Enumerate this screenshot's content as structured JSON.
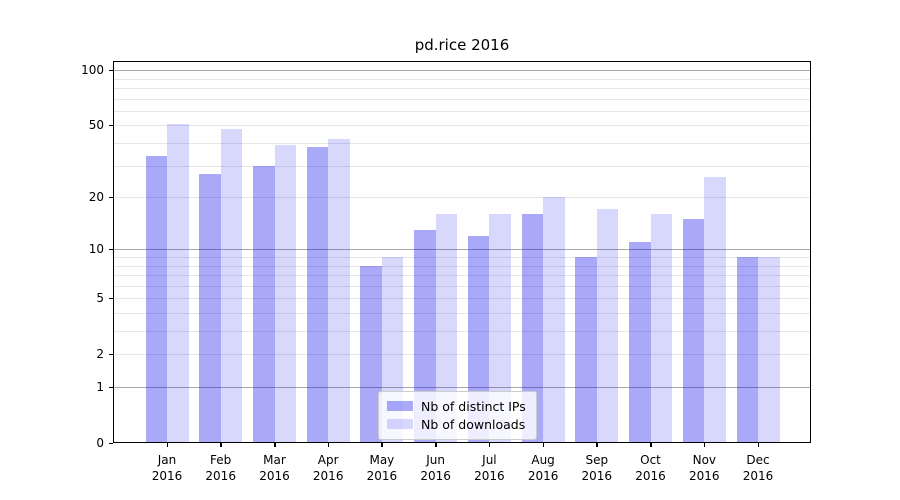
{
  "chart_data": {
    "type": "bar",
    "title": "pd.rice 2016",
    "categories": [
      "Jan 2016",
      "Feb 2016",
      "Mar 2016",
      "Apr 2016",
      "May 2016",
      "Jun 2016",
      "Jul 2016",
      "Aug 2016",
      "Sep 2016",
      "Oct 2016",
      "Nov 2016",
      "Dec 2016"
    ],
    "x_tick_months": [
      "Jan",
      "Feb",
      "Mar",
      "Apr",
      "May",
      "Jun",
      "Jul",
      "Aug",
      "Sep",
      "Oct",
      "Nov",
      "Dec"
    ],
    "x_tick_year": "2016",
    "series": [
      {
        "name": "Nb of distinct IPs",
        "base_color": "#0a0aeb",
        "alpha": 0.35,
        "apparent_color": "#a9a9f7",
        "values": [
          34,
          27,
          30,
          38,
          8,
          13,
          12,
          16,
          9,
          11,
          15,
          9
        ]
      },
      {
        "name": "Nb of downloads",
        "base_color": "#0a0aeb",
        "alpha": 0.16,
        "apparent_color": "#d8d8fb",
        "values": [
          51,
          48,
          39,
          42,
          9,
          16,
          16,
          20,
          17,
          16,
          26,
          9
        ]
      }
    ],
    "yscale": "log1p",
    "ylim": [
      0,
      112
    ],
    "yticks": [
      0,
      1,
      2,
      5,
      10,
      20,
      50,
      100
    ],
    "grid_major": [
      1,
      10,
      100
    ],
    "grid_minor": [
      2,
      3,
      4,
      5,
      6,
      7,
      8,
      9,
      20,
      30,
      40,
      50,
      60,
      70,
      80,
      90
    ],
    "grid_major_color": "#a8a8a8",
    "grid_minor_color": "#e6e6e6",
    "grid": "on",
    "legend_position": "lower center",
    "frame_color": "#000000",
    "background_color": "#ffffff"
  }
}
